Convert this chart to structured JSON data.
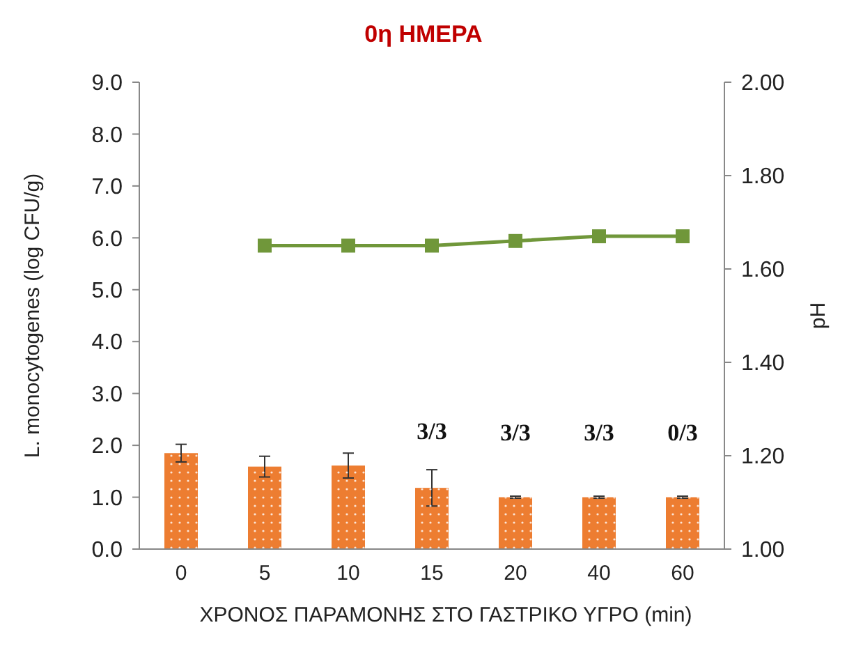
{
  "chart_data": {
    "type": "bar",
    "title": "0η ΗΜΕΡΑ",
    "xlabel": "ΧΡΟΝΟΣ ΠΑΡΑΜΟΝΗΣ ΣΤΟ ΓΑΣΤΡΙΚΟ ΥΓΡΟ (min)",
    "ylabel": "L. monocytogenes (log CFU/g)",
    "y2label": "pH",
    "categories": [
      "0",
      "5",
      "10",
      "15",
      "20",
      "40",
      "60"
    ],
    "series": [
      {
        "color": "#ed7d31",
        "values": [
          1.85,
          1.59,
          1.61,
          1.18,
          1.0,
          1.0,
          1.0
        ],
        "errors": [
          0.17,
          0.2,
          0.24,
          0.35,
          0.02,
          0.02,
          0.02
        ]
      },
      {
        "type": "line",
        "axis": "y2",
        "color": "#70973a",
        "marker": "square",
        "values": [
          null,
          1.65,
          1.65,
          1.65,
          1.66,
          1.67,
          1.67
        ]
      }
    ],
    "ylim": [
      0,
      9
    ],
    "yticks": [
      {
        "value": 0,
        "label": "0.0"
      },
      {
        "value": 1,
        "label": "1.0"
      },
      {
        "value": 2,
        "label": "2.0"
      },
      {
        "value": 3,
        "label": "3.0"
      },
      {
        "value": 4,
        "label": "4.0"
      },
      {
        "value": 5,
        "label": "5.0"
      },
      {
        "value": 6,
        "label": "6.0"
      },
      {
        "value": 7,
        "label": "7.0"
      },
      {
        "value": 8,
        "label": "8.0"
      },
      {
        "value": 9,
        "label": "9.0"
      }
    ],
    "y2lim": [
      1,
      2
    ],
    "y2ticks": [
      {
        "value": 1,
        "label": "1.00"
      },
      {
        "value": 1.2,
        "label": "1.20"
      },
      {
        "value": 1.4,
        "label": "1.40"
      },
      {
        "value": 1.6,
        "label": "1.60"
      },
      {
        "value": 1.8,
        "label": "1.80"
      },
      {
        "value": 2,
        "label": "2.00"
      }
    ],
    "annotations": [
      "3/3",
      "3/3",
      "3/3",
      "0/3"
    ],
    "grid": false
  }
}
